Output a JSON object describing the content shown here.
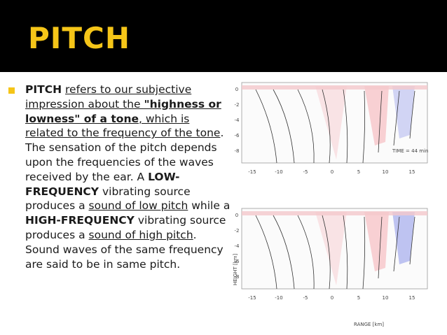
{
  "slide": {
    "title": "PITCH",
    "accent_color": "#f5c518",
    "header_color": "#000000"
  },
  "content": {
    "segments": [
      {
        "text": "PITCH",
        "style": "b"
      },
      {
        "text": " ",
        "style": ""
      },
      {
        "text": "refers to our subjective impression about the ",
        "style": "u"
      },
      {
        "text": "\"highness or lowness\" of a tone",
        "style": "u b"
      },
      {
        "text": ", which is related to the frequency of the tone",
        "style": "u"
      },
      {
        "text": ". The sensation of the pitch depends upon the frequencies of the waves received by the ear. A ",
        "style": ""
      },
      {
        "text": "LOW-FREQUENCY",
        "style": "b"
      },
      {
        "text": " vibrating source produces a ",
        "style": ""
      },
      {
        "text": "sound of low pitch",
        "style": "u"
      },
      {
        "text": " while a ",
        "style": ""
      },
      {
        "text": "HIGH-FREQUENCY",
        "style": "b"
      },
      {
        "text": " vibrating source produces a ",
        "style": ""
      },
      {
        "text": "sound of high pitch",
        "style": "u"
      },
      {
        "text": ". Sound waves of the same frequency are said to be in same pitch.",
        "style": ""
      }
    ]
  },
  "figure": {
    "top_label": "TIME = 44 min",
    "x_ticks": [
      "-15",
      "-10",
      "-5",
      "0",
      "5",
      "10",
      "15"
    ],
    "y_ticks": [
      "0",
      "-2",
      "-4",
      "-6",
      "-8"
    ],
    "xlabel": "RANGE [km]",
    "ylabel": "HEIGHT [km]"
  }
}
